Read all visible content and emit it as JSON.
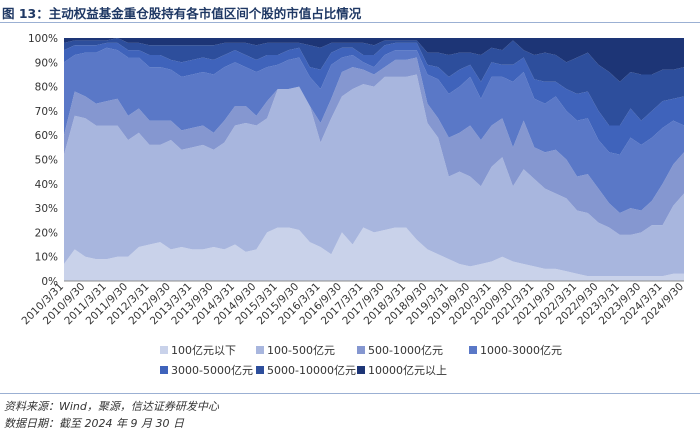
{
  "header": {
    "figure_title": "图 13：主动权益基金重仓股持有各市值区间个股的市值占比情况"
  },
  "footer": {
    "source": "资料来源：Wind，聚源，信达证券研发中心",
    "date_note": "数据日期：截至 2024 年 9 月 30 日"
  },
  "chart_data": {
    "type": "area",
    "stacked": true,
    "title": "",
    "xlabel": "",
    "ylabel": "",
    "ylim": [
      0,
      100
    ],
    "y_unit": "%",
    "yticks": [
      "0%",
      "10%",
      "20%",
      "30%",
      "40%",
      "50%",
      "60%",
      "70%",
      "80%",
      "90%",
      "100%"
    ],
    "grid": false,
    "legend_position": "bottom",
    "x_tick_labels": [
      "2010/3/31",
      "2010/9/30",
      "2011/3/31",
      "2011/9/30",
      "2012/3/31",
      "2012/9/30",
      "2013/3/31",
      "2013/9/30",
      "2014/3/31",
      "2014/9/30",
      "2015/3/31",
      "2015/9/30",
      "2016/3/31",
      "2016/9/30",
      "2017/3/31",
      "2017/9/30",
      "2018/3/31",
      "2018/9/30",
      "2019/3/31",
      "2019/9/30",
      "2020/3/31",
      "2020/9/30",
      "2021/3/31",
      "2021/9/30",
      "2022/3/31",
      "2022/9/30",
      "2023/3/31",
      "2023/9/30",
      "2024/3/31",
      "2024/9/30"
    ],
    "x_point_count": 59,
    "series": [
      {
        "name": "100亿元以下",
        "color": "#c9d2ea",
        "values": [
          7,
          13,
          10,
          9,
          9,
          10,
          10,
          14,
          15,
          16,
          13,
          14,
          13,
          13,
          14,
          13,
          15,
          12,
          13,
          20,
          22,
          22,
          21,
          16,
          14,
          11,
          20,
          15,
          22,
          20,
          21,
          22,
          22,
          17,
          13,
          11,
          9,
          7,
          6,
          7,
          8,
          10,
          8,
          7,
          6,
          5,
          5,
          4,
          3,
          2,
          2,
          2,
          2,
          2,
          2,
          2,
          2,
          3,
          3
        ]
      },
      {
        "name": "100-500亿元",
        "color": "#a8b6de",
        "values": [
          45,
          55,
          57,
          55,
          55,
          54,
          48,
          47,
          41,
          40,
          45,
          40,
          42,
          43,
          40,
          44,
          49,
          53,
          51,
          47,
          57,
          57,
          59,
          56,
          43,
          56,
          56,
          64,
          59,
          60,
          63,
          62,
          62,
          68,
          52,
          48,
          34,
          38,
          37,
          32,
          39,
          41,
          31,
          39,
          36,
          33,
          31,
          30,
          26,
          26,
          22,
          20,
          17,
          17,
          18,
          21,
          21,
          28,
          33
        ]
      },
      {
        "name": "500-1000亿元",
        "color": "#8597d0",
        "values": [
          8,
          10,
          9,
          9,
          10,
          11,
          10,
          10,
          10,
          10,
          8,
          8,
          8,
          8,
          7,
          9,
          8,
          7,
          4,
          7,
          0,
          0,
          0,
          0,
          8,
          8,
          10,
          9,
          6,
          5,
          4,
          7,
          7,
          7,
          8,
          8,
          16,
          16,
          21,
          19,
          17,
          16,
          16,
          20,
          13,
          15,
          18,
          16,
          14,
          16,
          14,
          10,
          9,
          11,
          9,
          10,
          17,
          17,
          17
        ]
      },
      {
        "name": "1000-3000亿元",
        "color": "#5a78c7",
        "values": [
          30,
          15,
          18,
          21,
          22,
          20,
          24,
          21,
          22,
          22,
          21,
          22,
          22,
          22,
          24,
          22,
          18,
          16,
          18,
          14,
          10,
          12,
          12,
          12,
          14,
          14,
          6,
          5,
          3,
          3,
          5,
          4,
          4,
          3,
          12,
          16,
          18,
          19,
          20,
          17,
          20,
          17,
          27,
          20,
          20,
          20,
          22,
          20,
          23,
          23,
          20,
          21,
          24,
          29,
          27,
          26,
          23,
          18,
          11
        ]
      },
      {
        "name": "3000-5000亿元",
        "color": "#3f63bb",
        "values": [
          5,
          4,
          3,
          3,
          2,
          3,
          3,
          3,
          5,
          5,
          4,
          6,
          6,
          6,
          6,
          5,
          5,
          5,
          5,
          5,
          4,
          4,
          4,
          4,
          8,
          5,
          4,
          3,
          3,
          5,
          4,
          3,
          3,
          3,
          4,
          5,
          7,
          7,
          5,
          7,
          6,
          5,
          7,
          6,
          8,
          9,
          6,
          9,
          11,
          11,
          12,
          11,
          12,
          12,
          10,
          11,
          11,
          9,
          12
        ]
      },
      {
        "name": "5000-10000亿元",
        "color": "#2d4e9c",
        "values": [
          3,
          2,
          2,
          2,
          1,
          2,
          3,
          3,
          4,
          4,
          6,
          7,
          6,
          5,
          6,
          5,
          3,
          5,
          6,
          5,
          5,
          3,
          2,
          9,
          9,
          4,
          2,
          2,
          5,
          4,
          2,
          1,
          1,
          1,
          5,
          6,
          9,
          7,
          5,
          11,
          6,
          6,
          10,
          3,
          10,
          12,
          11,
          11,
          15,
          16,
          19,
          22,
          18,
          15,
          19,
          15,
          13,
          12,
          12
        ]
      },
      {
        "name": "10000亿元以上",
        "color": "#1d3576",
        "values": [
          2,
          1,
          1,
          1,
          1,
          0,
          2,
          2,
          3,
          3,
          3,
          3,
          3,
          3,
          3,
          2,
          2,
          2,
          3,
          2,
          2,
          2,
          2,
          3,
          4,
          2,
          2,
          2,
          2,
          3,
          1,
          1,
          1,
          1,
          6,
          6,
          7,
          6,
          6,
          7,
          4,
          5,
          1,
          5,
          7,
          6,
          7,
          10,
          8,
          6,
          11,
          14,
          18,
          14,
          15,
          15,
          13,
          13,
          12
        ]
      }
    ]
  }
}
